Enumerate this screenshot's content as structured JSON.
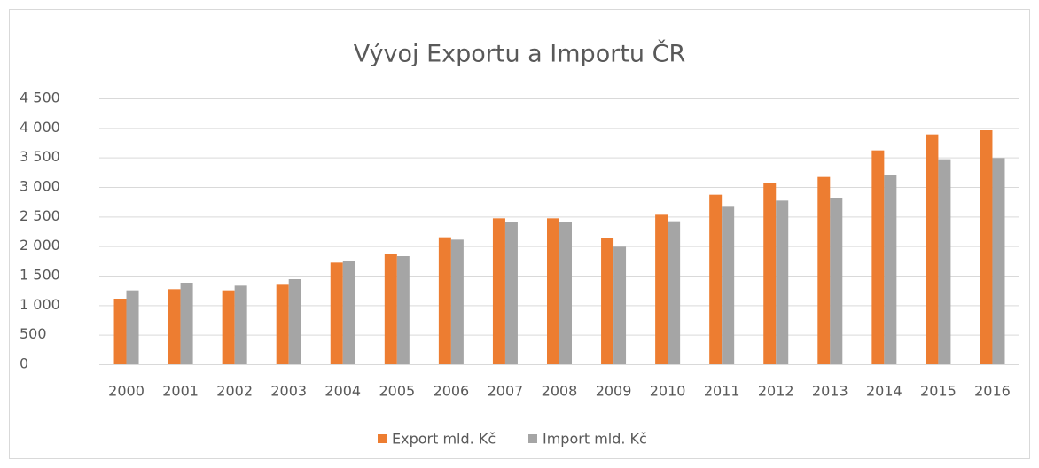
{
  "chart_data": {
    "type": "bar",
    "title": "Vývoj Exportu a Importu ČR",
    "categories": [
      "2000",
      "2001",
      "2002",
      "2003",
      "2004",
      "2005",
      "2006",
      "2007",
      "2008",
      "2009",
      "2010",
      "2011",
      "2012",
      "2013",
      "2014",
      "2015",
      "2016"
    ],
    "series": [
      {
        "name": "Export mld. Kč",
        "color": "#ed7d31",
        "values": [
          1110,
          1270,
          1250,
          1360,
          1720,
          1860,
          2150,
          2470,
          2470,
          2140,
          2530,
          2870,
          3070,
          3170,
          3620,
          3890,
          3960
        ]
      },
      {
        "name": "Import mld. Kč",
        "color": "#a5a5a5",
        "values": [
          1250,
          1380,
          1330,
          1440,
          1750,
          1830,
          2110,
          2400,
          2400,
          1990,
          2420,
          2680,
          2770,
          2820,
          3200,
          3470,
          3490
        ]
      }
    ],
    "ylim": [
      0,
      4500
    ],
    "yticks": [
      0,
      500,
      {
        "value": 1000,
        "label": "1 000"
      },
      {
        "value": 1500,
        "label": "1 500"
      },
      {
        "value": 2000,
        "label": "2 000"
      },
      {
        "value": 2500,
        "label": "2 500"
      },
      {
        "value": 3000,
        "label": "3 000"
      },
      {
        "value": 3500,
        "label": "3 500"
      },
      {
        "value": 4000,
        "label": "4 000"
      },
      {
        "value": 4500,
        "label": "4 500"
      }
    ],
    "grid": true,
    "legend": "bottom"
  }
}
